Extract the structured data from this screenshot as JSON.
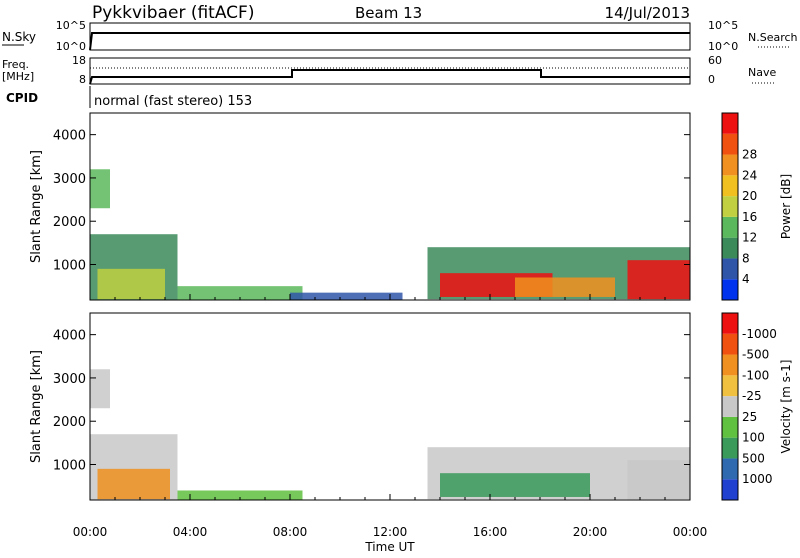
{
  "header": {
    "station": "Pykkvibaer (fitACF)",
    "beam": "Beam 13",
    "date": "14/Jul/2013"
  },
  "top_panel_1": {
    "left_label": "N.Sky",
    "right_label": "N.Search",
    "left_ticks": [
      "10^5",
      "10^0"
    ],
    "right_ticks": [
      "10^5",
      "10^0"
    ]
  },
  "top_panel_2": {
    "left_label_1": "Freq.",
    "left_label_2": "[MHz]",
    "right_label": "Nave",
    "left_ticks": [
      "18",
      "8"
    ],
    "right_ticks": [
      "60",
      "0"
    ],
    "cpid_label": "CPID"
  },
  "cpid_text": "normal (fast stereo) 153",
  "x_axis": {
    "label": "Time UT",
    "ticks": [
      "00:00",
      "04:00",
      "08:00",
      "12:00",
      "16:00",
      "20:00",
      "00:00"
    ]
  },
  "colors": {
    "dotted_line": "#000000"
  },
  "chart_data": [
    {
      "type": "heatmap",
      "title": "",
      "xlabel": "Time UT",
      "ylabel": "Slant Range [km]",
      "y_ticks": [
        "1000",
        "2000",
        "3000",
        "4000"
      ],
      "ylim": [
        180,
        4500
      ],
      "xlim": [
        "00:00",
        "24:00"
      ],
      "colorbar": {
        "label": "Power [dB]",
        "ticks": [
          "4",
          "8",
          "12",
          "16",
          "20",
          "24",
          "28"
        ],
        "colors": [
          "#0033ee",
          "#2f55a8",
          "#3b8a5a",
          "#5cb85c",
          "#c0d040",
          "#f0c020",
          "#f09020",
          "#f05010",
          "#ee1111"
        ]
      },
      "regions": [
        {
          "t0": 0.0,
          "t1": 0.8,
          "r0": 2300,
          "r1": 3200,
          "level": 3
        },
        {
          "t0": 0.0,
          "t1": 3.5,
          "r0": 180,
          "r1": 1700,
          "level": 2
        },
        {
          "t0": 0.3,
          "t1": 3.0,
          "r0": 200,
          "r1": 900,
          "level": 4
        },
        {
          "t0": 3.5,
          "t1": 8.5,
          "r0": 180,
          "r1": 500,
          "level": 3
        },
        {
          "t0": 8.0,
          "t1": 12.5,
          "r0": 180,
          "r1": 350,
          "level": 1
        },
        {
          "t0": 13.5,
          "t1": 24.0,
          "r0": 200,
          "r1": 1400,
          "level": 2
        },
        {
          "t0": 14.0,
          "t1": 18.5,
          "r0": 250,
          "r1": 800,
          "level": 8
        },
        {
          "t0": 21.5,
          "t1": 24.0,
          "r0": 200,
          "r1": 1100,
          "level": 8
        },
        {
          "t0": 17.0,
          "t1": 21.0,
          "r0": 250,
          "r1": 700,
          "level": 6
        }
      ]
    },
    {
      "type": "heatmap",
      "title": "",
      "xlabel": "Time UT",
      "ylabel": "Slant Range [km]",
      "y_ticks": [
        "1000",
        "2000",
        "3000",
        "4000"
      ],
      "ylim": [
        180,
        4500
      ],
      "xlim": [
        "00:00",
        "24:00"
      ],
      "colorbar": {
        "label": "Velocity [m s-1]",
        "ticks": [
          "1000",
          "500",
          "100",
          "25",
          "-25",
          "-100",
          "-500",
          "-1000"
        ],
        "colors": [
          "#2040d0",
          "#2f6ab0",
          "#3a9a5a",
          "#60c040",
          "#c8c8c8",
          "#f0c040",
          "#f09020",
          "#f05010",
          "#ee1111"
        ]
      },
      "regions": [
        {
          "t0": 0.0,
          "t1": 0.8,
          "r0": 2300,
          "r1": 3200,
          "level": 4
        },
        {
          "t0": 0.0,
          "t1": 3.5,
          "r0": 180,
          "r1": 1700,
          "level": 4
        },
        {
          "t0": 0.3,
          "t1": 3.2,
          "r0": 200,
          "r1": 900,
          "level": 6
        },
        {
          "t0": 3.5,
          "t1": 8.5,
          "r0": 180,
          "r1": 400,
          "level": 3
        },
        {
          "t0": 13.5,
          "t1": 24.0,
          "r0": 200,
          "r1": 1400,
          "level": 4
        },
        {
          "t0": 14.0,
          "t1": 20.0,
          "r0": 250,
          "r1": 800,
          "level": 2
        },
        {
          "t0": 21.5,
          "t1": 24.0,
          "r0": 200,
          "r1": 1100,
          "level": 4
        }
      ]
    }
  ]
}
